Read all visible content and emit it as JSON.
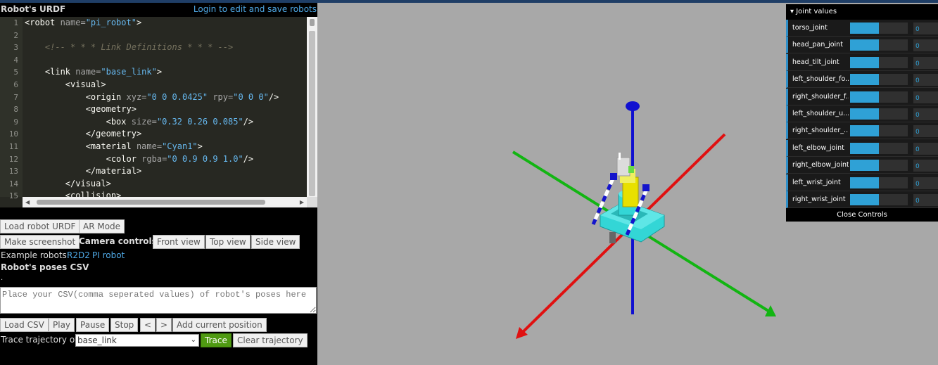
{
  "header": {
    "title": "Robot's URDF",
    "login_link": "Login to edit and save robots"
  },
  "editor": {
    "line_numbers": [
      "1",
      "2",
      "3",
      "4",
      "5",
      "6",
      "7",
      "8",
      "9",
      "10",
      "11",
      "12",
      "13",
      "14",
      "15"
    ],
    "lines": [
      [
        {
          "t": "<robot ",
          "c": "tx"
        },
        {
          "t": "name=",
          "c": "at"
        },
        {
          "t": "\"pi_robot\"",
          "c": "st"
        },
        {
          "t": ">",
          "c": "tx"
        }
      ],
      [],
      [
        {
          "t": "    <!-- * * * Link Definitions * * * -->",
          "c": "cm"
        }
      ],
      [],
      [
        {
          "t": "    <link ",
          "c": "tx"
        },
        {
          "t": "name=",
          "c": "at"
        },
        {
          "t": "\"base_link\"",
          "c": "st"
        },
        {
          "t": ">",
          "c": "tx"
        }
      ],
      [
        {
          "t": "        <visual>",
          "c": "tx"
        }
      ],
      [
        {
          "t": "            <origin ",
          "c": "tx"
        },
        {
          "t": "xyz=",
          "c": "at"
        },
        {
          "t": "\"0 0 0.0425\"",
          "c": "st"
        },
        {
          "t": " rpy=",
          "c": "at"
        },
        {
          "t": "\"0 0 0\"",
          "c": "st"
        },
        {
          "t": "/>",
          "c": "tx"
        }
      ],
      [
        {
          "t": "            <geometry>",
          "c": "tx"
        }
      ],
      [
        {
          "t": "                <box ",
          "c": "tx"
        },
        {
          "t": "size=",
          "c": "at"
        },
        {
          "t": "\"0.32 0.26 0.085\"",
          "c": "st"
        },
        {
          "t": "/>",
          "c": "tx"
        }
      ],
      [
        {
          "t": "            </geometry>",
          "c": "tx"
        }
      ],
      [
        {
          "t": "            <material ",
          "c": "tx"
        },
        {
          "t": "name=",
          "c": "at"
        },
        {
          "t": "\"Cyan1\"",
          "c": "st"
        },
        {
          "t": ">",
          "c": "tx"
        }
      ],
      [
        {
          "t": "                <color ",
          "c": "tx"
        },
        {
          "t": "rgba=",
          "c": "at"
        },
        {
          "t": "\"0 0.9 0.9 1.0\"",
          "c": "st"
        },
        {
          "t": "/>",
          "c": "tx"
        }
      ],
      [
        {
          "t": "            </material>",
          "c": "tx"
        }
      ],
      [
        {
          "t": "        </visual>",
          "c": "tx"
        }
      ],
      [
        {
          "t": "        <collision>",
          "c": "tx"
        }
      ]
    ]
  },
  "controls": {
    "load_urdf": "Load robot URDF",
    "ar_mode": "AR Mode",
    "screenshot": "Make screenshot",
    "camera_label": "Camera controls:",
    "front_view": "Front view",
    "top_view": "Top view",
    "side_view": "Side view",
    "examples_label": "Example robots:",
    "example_r2d2": "R2D2",
    "example_pi": "PI robot",
    "poses_title": "Robot's poses CSV",
    "dot": ".",
    "csv_placeholder": "Place your CSV(comma seperated values) of robot's poses here",
    "load_csv": "Load CSV",
    "play": "Play",
    "pause": "Pause",
    "stop": "Stop",
    "prev": "<",
    "next": ">",
    "add_position": "Add current position",
    "trace_label": "Trace trajectory of:",
    "trace_select": "base_link",
    "trace": "Trace",
    "clear_trajectory": "Clear trajectory"
  },
  "joints": {
    "title": "Joint values",
    "close": "Close Controls",
    "items": [
      {
        "name": "torso_joint",
        "value": "0",
        "fill": 0.5
      },
      {
        "name": "head_pan_joint",
        "value": "0",
        "fill": 0.5
      },
      {
        "name": "head_tilt_joint",
        "value": "0",
        "fill": 0.5
      },
      {
        "name": "left_shoulder_fo...",
        "value": "0",
        "fill": 0.5
      },
      {
        "name": "right_shoulder_f...",
        "value": "0",
        "fill": 0.5
      },
      {
        "name": "left_shoulder_u...",
        "value": "0",
        "fill": 0.5
      },
      {
        "name": "right_shoulder_...",
        "value": "0",
        "fill": 0.5
      },
      {
        "name": "left_elbow_joint",
        "value": "0",
        "fill": 0.5
      },
      {
        "name": "right_elbow_joint",
        "value": "0",
        "fill": 0.5
      },
      {
        "name": "left_wrist_joint",
        "value": "0",
        "fill": 0.5
      },
      {
        "name": "right_wrist_joint",
        "value": "0",
        "fill": 0.5
      }
    ]
  },
  "colors": {
    "accent": "#2fa1d6",
    "viewport_bg": "#a8a8a8",
    "axis_x": "#e01010",
    "axis_y": "#12b512",
    "axis_z": "#1010d0",
    "robot_base": "#33d6d6",
    "robot_torso": "#e8e000",
    "trace_button": "#4f9a12"
  }
}
